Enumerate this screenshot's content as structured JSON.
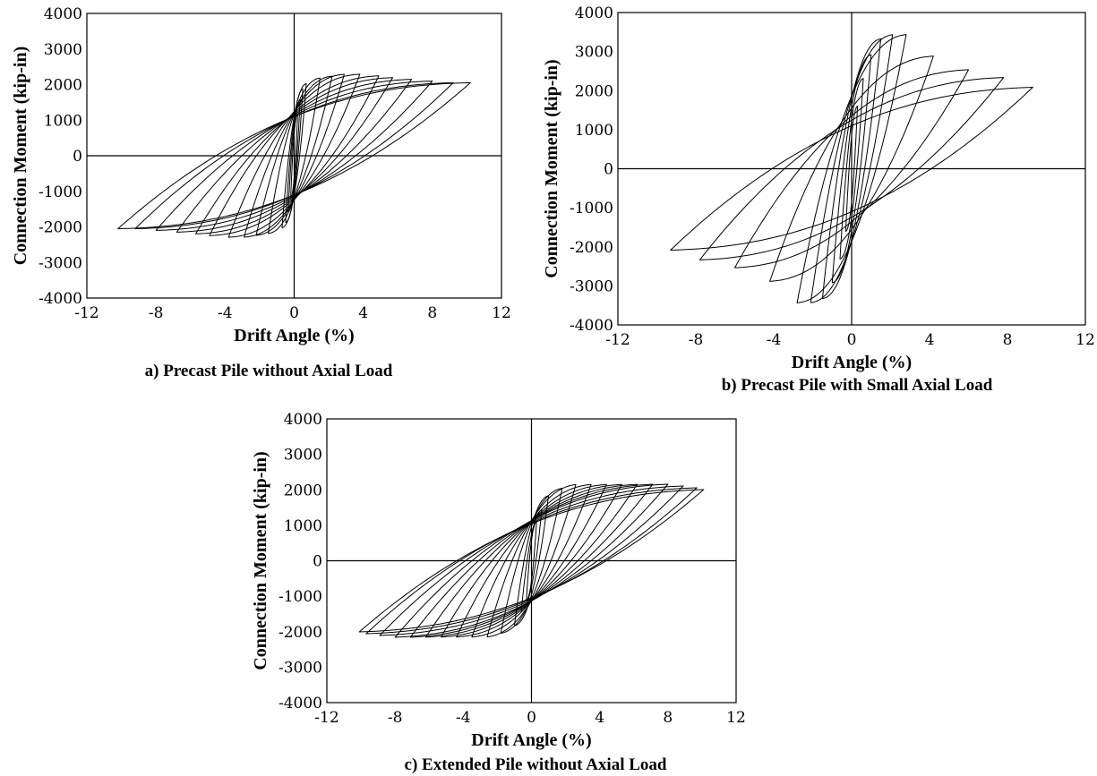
{
  "chart_data": [
    {
      "type": "line",
      "caption": "a) Precast Pile without Axial Load",
      "xlabel": "Drift Angle (%)",
      "ylabel": "Connection Moment (kip-in)",
      "xlim": [
        -12,
        12
      ],
      "ylim": [
        -4000,
        4000
      ],
      "xticks": [
        "-12",
        "-8",
        "-4",
        "0",
        "4",
        "8",
        "12"
      ],
      "yticks": [
        "4000",
        "3000",
        "2000",
        "1000",
        "0",
        "-1000",
        "-2000",
        "-3000",
        "-4000"
      ],
      "grid": false,
      "series": [
        {
          "values": [
            {
              "amp": 0.2,
              "peak": 1100,
              "hard": 500
            },
            {
              "amp": 0.35,
              "peak": 1500,
              "hard": 500
            },
            {
              "amp": 0.5,
              "peak": 1800,
              "hard": 500
            },
            {
              "amp": 0.7,
              "peak": 1950,
              "hard": 500
            },
            {
              "amp": 1.5,
              "peak": 2100,
              "hard": 550
            },
            {
              "amp": 2.2,
              "peak": 2150,
              "hard": 570
            },
            {
              "amp": 2.9,
              "peak": 2200,
              "hard": 590
            },
            {
              "amp": 3.8,
              "peak": 2200,
              "hard": 610
            },
            {
              "amp": 4.9,
              "peak": 2150,
              "hard": 630
            },
            {
              "amp": 5.7,
              "peak": 2100,
              "hard": 640
            },
            {
              "amp": 6.8,
              "peak": 2050,
              "hard": 650
            },
            {
              "amp": 8.0,
              "peak": 2000,
              "hard": 660
            },
            {
              "amp": 9.2,
              "peak": 1950,
              "hard": 670
            },
            {
              "amp": 10.2,
              "peak": 1950,
              "hard": 680
            }
          ]
        }
      ]
    },
    {
      "type": "line",
      "caption": "b) Precast Pile with Small Axial Load",
      "xlabel": "Drift Angle (%)",
      "ylabel": "Connection Moment (kip-in)",
      "xlim": [
        -12,
        12
      ],
      "ylim": [
        -4000,
        4000
      ],
      "xticks": [
        "-12",
        "-8",
        "-4",
        "0",
        "4",
        "8",
        "12"
      ],
      "yticks": [
        "4000",
        "3000",
        "2000",
        "1000",
        "0",
        "-1000",
        "-2000",
        "-3000",
        "-4000"
      ],
      "grid": false,
      "series": [
        {
          "values": [
            {
              "amp": 0.3,
              "peak": 1500,
              "hard": 700
            },
            {
              "amp": 0.6,
              "peak": 2200,
              "hard": 750
            },
            {
              "amp": 1.0,
              "peak": 2800,
              "hard": 800
            },
            {
              "amp": 1.5,
              "peak": 3200,
              "hard": 850
            },
            {
              "amp": 2.1,
              "peak": 3300,
              "hard": 880
            },
            {
              "amp": 2.8,
              "peak": 3300,
              "hard": 900
            },
            {
              "amp": 4.2,
              "peak": 2750,
              "hard": 900
            },
            {
              "amp": 6.0,
              "peak": 2400,
              "hard": 900
            },
            {
              "amp": 7.8,
              "peak": 2200,
              "hard": 900
            },
            {
              "amp": 9.3,
              "peak": 1950,
              "hard": 900
            }
          ]
        }
      ]
    },
    {
      "type": "line",
      "caption": "c) Extended Pile without Axial Load",
      "xlabel": "Drift Angle (%)",
      "ylabel": "Connection Moment (kip-in)",
      "xlim": [
        -12,
        12
      ],
      "ylim": [
        -4000,
        4000
      ],
      "xticks": [
        "-12",
        "-8",
        "-4",
        "0",
        "4",
        "8",
        "12"
      ],
      "yticks": [
        "4000",
        "3000",
        "2000",
        "1000",
        "0",
        "-1000",
        "-2000",
        "-3000",
        "-4000"
      ],
      "grid": false,
      "series": [
        {
          "values": [
            {
              "amp": 0.3,
              "peak": 1000,
              "hard": 800
            },
            {
              "amp": 0.6,
              "peak": 1300,
              "hard": 850
            },
            {
              "amp": 1.0,
              "peak": 1700,
              "hard": 900
            },
            {
              "amp": 1.8,
              "peak": 1900,
              "hard": 950
            },
            {
              "amp": 2.6,
              "peak": 2000,
              "hard": 980
            },
            {
              "amp": 3.5,
              "peak": 2000,
              "hard": 1000
            },
            {
              "amp": 4.4,
              "peak": 2000,
              "hard": 1010
            },
            {
              "amp": 5.3,
              "peak": 2000,
              "hard": 1020
            },
            {
              "amp": 6.2,
              "peak": 2000,
              "hard": 1030
            },
            {
              "amp": 7.1,
              "peak": 2000,
              "hard": 1040
            },
            {
              "amp": 8.0,
              "peak": 2000,
              "hard": 1050
            },
            {
              "amp": 8.9,
              "peak": 1950,
              "hard": 1050
            },
            {
              "amp": 9.7,
              "peak": 1900,
              "hard": 1050
            },
            {
              "amp": 10.1,
              "peak": 1850,
              "hard": 1050
            }
          ]
        }
      ]
    }
  ]
}
